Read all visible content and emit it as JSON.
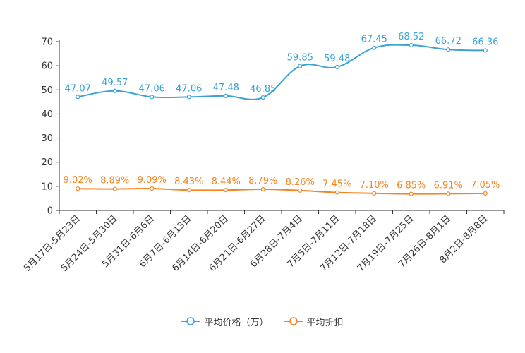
{
  "chart_data": {
    "type": "line",
    "categories": [
      "5月17日-5月23日",
      "5月24日-5月30日",
      "5月31日-6月6日",
      "6月7日-6月13日",
      "6月14日-6月20日",
      "6月21日-6月27日",
      "6月28日-7月4日",
      "7月5日-7月11日",
      "7月12日-7月18日",
      "7月19日-7月25日",
      "7月26日-8月1日",
      "8月2日-8月8日"
    ],
    "series": [
      {
        "name": "平均价格（万）",
        "color": "#3aa3d4",
        "values": [
          47.07,
          49.57,
          47.06,
          47.06,
          47.48,
          46.85,
          59.85,
          59.48,
          67.45,
          68.52,
          66.72,
          66.36
        ],
        "labels": [
          "47.07",
          "49.57",
          "47.06",
          "47.06",
          "47.48",
          "46.85",
          "59.85",
          "59.48",
          "67.45",
          "68.52",
          "66.72",
          "66.36"
        ]
      },
      {
        "name": "平均折扣",
        "color": "#f5841f",
        "values": [
          9.02,
          8.89,
          9.09,
          8.43,
          8.44,
          8.79,
          8.26,
          7.45,
          7.1,
          6.85,
          6.91,
          7.05
        ],
        "labels": [
          "9.02%",
          "8.89%",
          "9.09%",
          "8.43%",
          "8.44%",
          "8.79%",
          "8.26%",
          "7.45%",
          "7.10%",
          "6.85%",
          "6.91%",
          "7.05%"
        ]
      }
    ],
    "y_ticks": [
      "0",
      "10",
      "20",
      "30",
      "40",
      "50",
      "60",
      "70"
    ],
    "ylim": [
      0,
      70
    ],
    "title": "",
    "xlabel": "",
    "ylabel": "",
    "grid": false,
    "legend_position": "bottom-center"
  }
}
